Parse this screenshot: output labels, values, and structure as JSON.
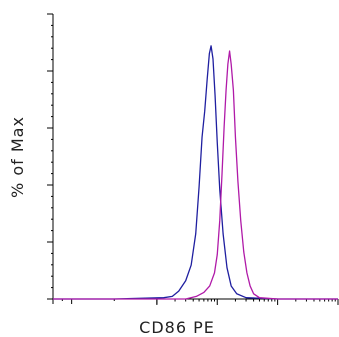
{
  "chart_data": {
    "type": "line",
    "title": "",
    "xlabel": "CD86 PE",
    "ylabel": "% of Max",
    "x_scale": "log",
    "xlim": [
      -100,
      100000
    ],
    "ylim": [
      0,
      100
    ],
    "grid": false,
    "legend": "none",
    "series": [
      {
        "color": "#1f1fa0",
        "x": [
          -100,
          50,
          130,
          180,
          230,
          300,
          370,
          440,
          500,
          560,
          620,
          680,
          740,
          790,
          850,
          920,
          1000,
          1100,
          1250,
          1450,
          1700,
          2100,
          3000,
          10000,
          100000
        ],
        "y": [
          0,
          0,
          0.5,
          1,
          3,
          7,
          13,
          25,
          43,
          62,
          72,
          84,
          94,
          97,
          92,
          78,
          60,
          42,
          25,
          12,
          5,
          2,
          0.5,
          0,
          0
        ]
      },
      {
        "color": "#b01aa8",
        "x": [
          -100,
          300,
          450,
          600,
          750,
          900,
          1000,
          1100,
          1200,
          1300,
          1400,
          1500,
          1600,
          1700,
          1850,
          2000,
          2200,
          2450,
          2750,
          3100,
          3500,
          4000,
          5000,
          10000,
          100000
        ],
        "y": [
          0,
          0,
          1,
          2.5,
          5,
          10,
          17,
          30,
          48,
          66,
          80,
          90,
          95,
          90,
          80,
          62,
          45,
          30,
          18,
          10,
          5,
          2,
          0.5,
          0,
          0
        ]
      }
    ]
  }
}
